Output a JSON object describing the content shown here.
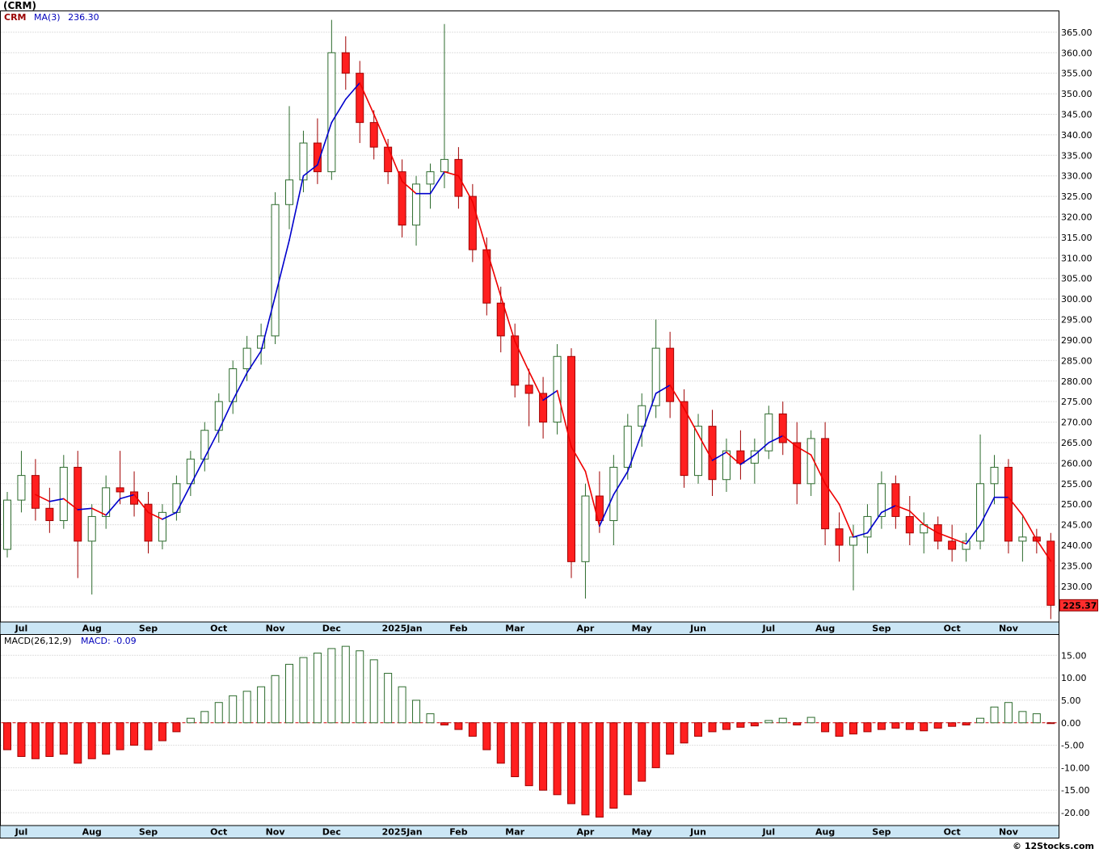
{
  "meta": {
    "title": "(CRM)",
    "footer": "© 12Stocks.com"
  },
  "price_panel": {
    "legend_symbol": "CRM",
    "legend_ma": "MA(3)",
    "legend_ma_value": "236.30",
    "last_price_tag": "225.37"
  },
  "macd_panel": {
    "legend": "MACD(26,12,9)",
    "value_text": "MACD: -0.09"
  },
  "chart_data": {
    "type": "candlestick",
    "symbol": "CRM",
    "title": "(CRM) weekly candlestick with MA(3) and MACD(26,12,9)",
    "months": [
      "Jul",
      "Aug",
      "Sep",
      "Oct",
      "Nov",
      "Dec",
      "2025Jan",
      "Feb",
      "Mar",
      "Apr",
      "May",
      "Jun",
      "Jul",
      "Aug",
      "Sep",
      "Oct",
      "Nov"
    ],
    "month_tick_indices": [
      1,
      6,
      10,
      15,
      19,
      23,
      28,
      32,
      36,
      41,
      45,
      49,
      54,
      58,
      62,
      67,
      71
    ],
    "price_axis": {
      "min": 225,
      "max": 365,
      "step": 5
    },
    "macd_axis": {
      "min": -20,
      "max": 15,
      "step": 5
    },
    "last_price": 225.37,
    "ma_window": 3,
    "ma_last": 236.3,
    "macd_last": -0.09,
    "candles": [
      [
        239,
        253,
        237,
        251
      ],
      [
        251,
        263,
        248,
        257
      ],
      [
        257,
        261,
        246,
        249
      ],
      [
        249,
        254,
        243,
        246
      ],
      [
        246,
        262,
        244,
        259
      ],
      [
        259,
        263,
        232,
        241
      ],
      [
        241,
        250,
        228,
        247
      ],
      [
        247,
        257,
        244,
        254
      ],
      [
        254,
        263,
        250,
        253
      ],
      [
        253,
        258,
        247,
        250
      ],
      [
        250,
        253,
        238,
        241
      ],
      [
        241,
        250,
        239,
        248
      ],
      [
        248,
        257,
        246,
        255
      ],
      [
        255,
        263,
        252,
        261
      ],
      [
        261,
        270,
        258,
        268
      ],
      [
        268,
        277,
        265,
        275
      ],
      [
        275,
        285,
        272,
        283
      ],
      [
        283,
        291,
        280,
        288
      ],
      [
        288,
        294,
        284,
        291
      ],
      [
        291,
        326,
        289,
        323
      ],
      [
        323,
        347,
        317,
        329
      ],
      [
        329,
        341,
        326,
        338
      ],
      [
        338,
        344,
        328,
        331
      ],
      [
        331,
        368,
        329,
        360
      ],
      [
        360,
        364,
        351,
        355
      ],
      [
        355,
        358,
        338,
        343
      ],
      [
        343,
        346,
        334,
        337
      ],
      [
        337,
        339,
        328,
        331
      ],
      [
        331,
        334,
        315,
        318
      ],
      [
        318,
        330,
        313,
        328
      ],
      [
        328,
        333,
        322,
        331
      ],
      [
        331,
        367,
        327,
        334
      ],
      [
        334,
        337,
        322,
        325
      ],
      [
        325,
        328,
        309,
        312
      ],
      [
        312,
        315,
        296,
        299
      ],
      [
        299,
        303,
        287,
        291
      ],
      [
        291,
        294,
        276,
        279
      ],
      [
        279,
        283,
        269,
        277
      ],
      [
        277,
        281,
        266,
        270
      ],
      [
        270,
        289,
        267,
        286
      ],
      [
        286,
        288,
        232,
        236
      ],
      [
        236,
        255,
        227,
        252
      ],
      [
        252,
        258,
        243,
        246
      ],
      [
        246,
        262,
        240,
        259
      ],
      [
        259,
        272,
        256,
        269
      ],
      [
        269,
        277,
        264,
        274
      ],
      [
        274,
        295,
        271,
        288
      ],
      [
        288,
        292,
        271,
        275
      ],
      [
        275,
        278,
        254,
        257
      ],
      [
        257,
        272,
        255,
        269
      ],
      [
        269,
        273,
        252,
        256
      ],
      [
        256,
        266,
        253,
        263
      ],
      [
        263,
        268,
        256,
        260
      ],
      [
        260,
        266,
        255,
        263
      ],
      [
        263,
        274,
        261,
        272
      ],
      [
        272,
        275,
        262,
        265
      ],
      [
        265,
        270,
        250,
        255
      ],
      [
        255,
        268,
        252,
        266
      ],
      [
        266,
        270,
        240,
        244
      ],
      [
        244,
        248,
        236,
        240
      ],
      [
        240,
        245,
        229,
        242
      ],
      [
        242,
        250,
        238,
        247
      ],
      [
        247,
        258,
        244,
        255
      ],
      [
        255,
        257,
        244,
        247
      ],
      [
        247,
        252,
        240,
        243
      ],
      [
        243,
        248,
        238,
        245
      ],
      [
        245,
        247,
        239,
        241
      ],
      [
        241,
        245,
        236,
        239
      ],
      [
        239,
        243,
        236,
        241
      ],
      [
        241,
        267,
        239,
        255
      ],
      [
        255,
        262,
        250,
        259
      ],
      [
        259,
        261,
        238,
        241
      ],
      [
        241,
        247,
        236,
        242
      ],
      [
        242,
        244,
        238,
        241
      ],
      [
        241,
        243,
        222,
        225.37
      ]
    ],
    "macd_histogram": [
      -6,
      -7.5,
      -8,
      -7.5,
      -7,
      -9,
      -8,
      -7,
      -6,
      -5,
      -6,
      -4,
      -2,
      1,
      2.5,
      4.5,
      6,
      7,
      8,
      10.5,
      13,
      14.5,
      15.5,
      16.5,
      17,
      16,
      14,
      11,
      8,
      5,
      2,
      -0.5,
      -1.5,
      -3,
      -6,
      -9,
      -12,
      -14,
      -15,
      -16,
      -18,
      -20.5,
      -21,
      -19,
      -16,
      -13,
      -10,
      -7,
      -4.5,
      -3,
      -2,
      -1.5,
      -1,
      -0.7,
      0.5,
      1,
      -0.5,
      1.2,
      -2,
      -3,
      -2.5,
      -2,
      -1.5,
      -1.2,
      -1.5,
      -1.8,
      -1.2,
      -0.8,
      -0.5,
      1,
      3.5,
      4.5,
      2.5,
      2,
      -0.09
    ],
    "colors": {
      "up_stroke": "#2d6b2d",
      "up_fill": "#ffffff",
      "down_fill": "#ff1f1f",
      "down_stroke": "#a00000",
      "ma_up": "#0000cc",
      "ma_down": "#ee0000",
      "grid": "#c0c0c0",
      "strip_bg": "#cbe6f5",
      "tag_bg": "#ff2d2d",
      "zero_line": "#cc0000",
      "border": "#000000"
    }
  }
}
